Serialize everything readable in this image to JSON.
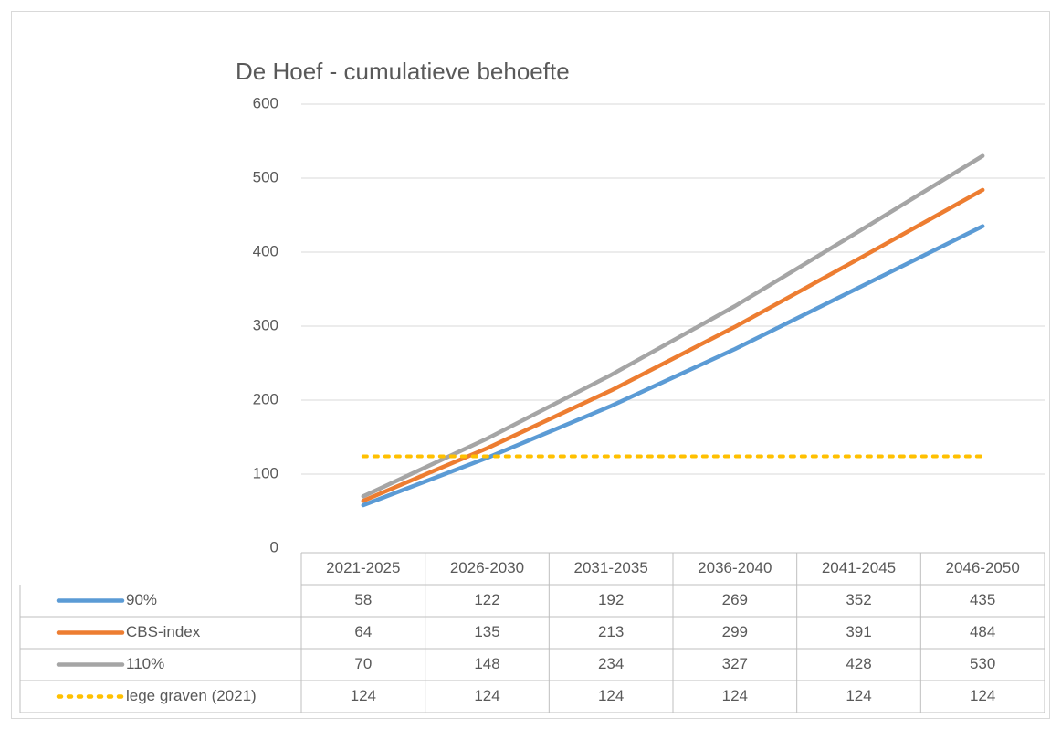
{
  "chart_data": {
    "type": "line",
    "title": "De Hoef - cumulatieve behoefte",
    "categories": [
      "2021-2025",
      "2026-2030",
      "2031-2035",
      "2036-2040",
      "2041-2045",
      "2046-2050"
    ],
    "series": [
      {
        "name": "90%",
        "color": "#5b9bd5",
        "style": "solid",
        "values": [
          58,
          122,
          192,
          269,
          352,
          435
        ]
      },
      {
        "name": "CBS-index",
        "color": "#ed7d31",
        "style": "solid",
        "values": [
          64,
          135,
          213,
          299,
          391,
          484
        ]
      },
      {
        "name": "110%",
        "color": "#a5a5a5",
        "style": "solid",
        "values": [
          70,
          148,
          234,
          327,
          428,
          530
        ]
      },
      {
        "name": "lege graven (2021)",
        "color": "#ffc000",
        "style": "dotted",
        "values": [
          124,
          124,
          124,
          124,
          124,
          124
        ]
      }
    ],
    "ylim": [
      0,
      600
    ],
    "yticks": [
      0,
      100,
      200,
      300,
      400,
      500,
      600
    ],
    "grid": true,
    "data_table": true
  }
}
